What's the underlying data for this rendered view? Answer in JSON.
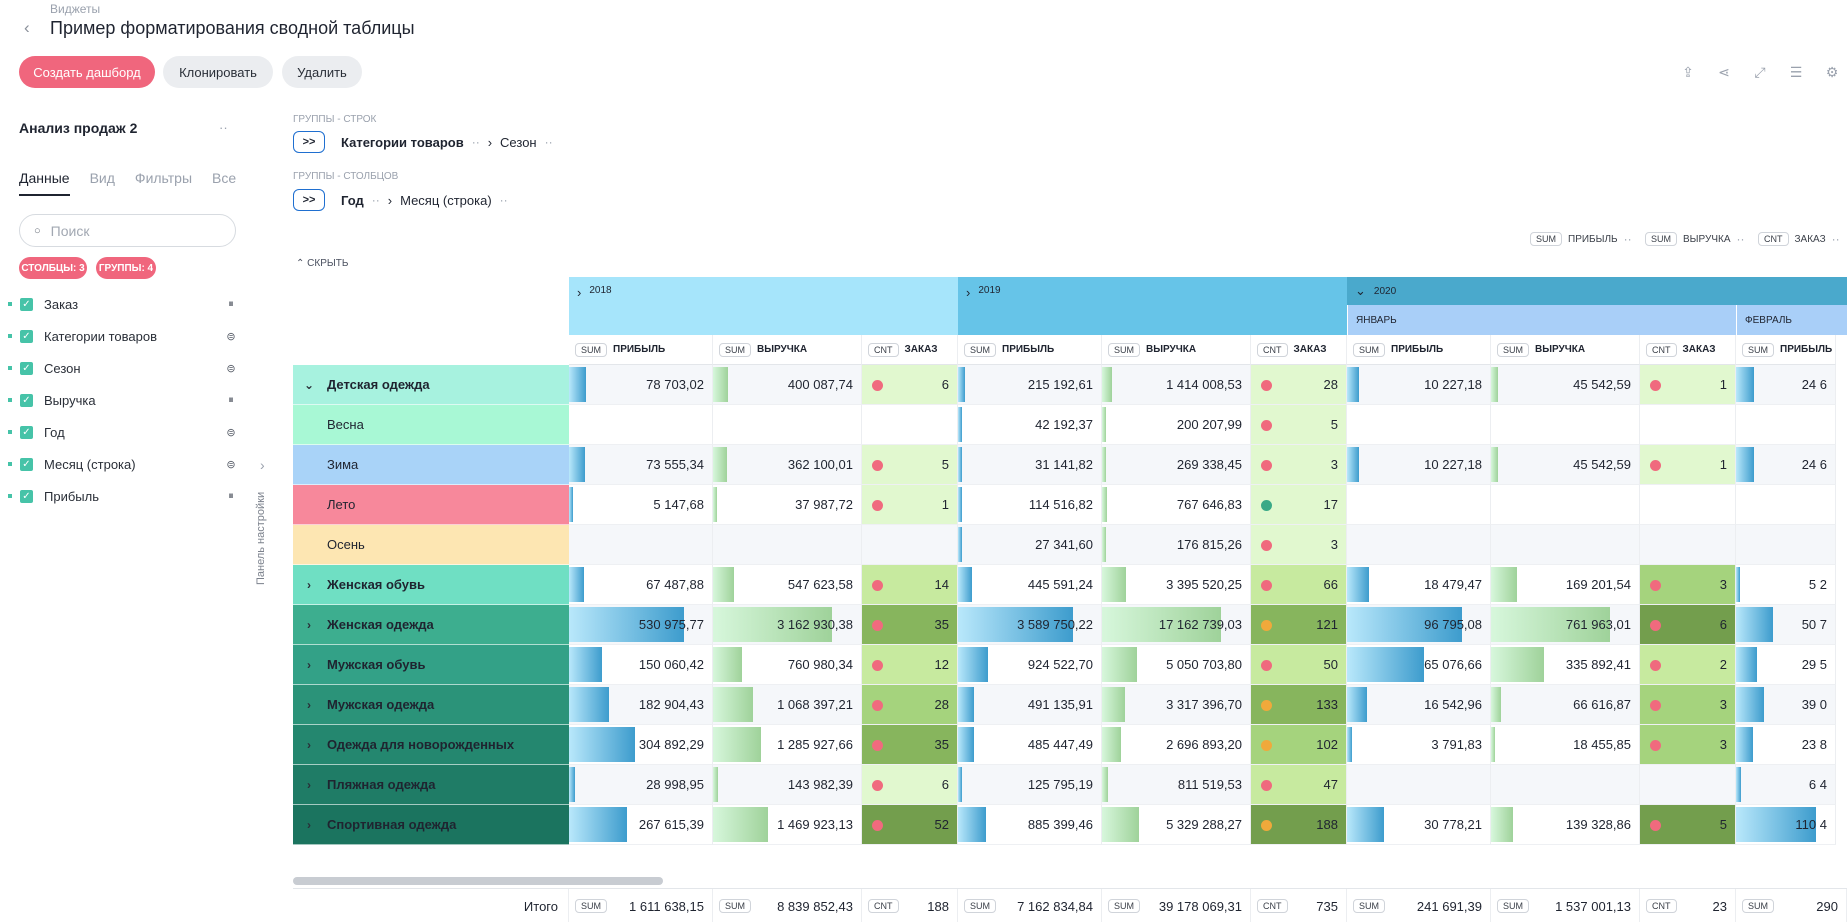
{
  "header": {
    "breadcrumb": "Виджеты",
    "title": "Пример форматирования сводной таблицы",
    "buttons": {
      "create": "Создать дашборд",
      "clone": "Клонировать",
      "delete": "Удалить"
    }
  },
  "sidebar": {
    "title": "Анализ продаж 2",
    "more": "··",
    "tabs": [
      "Данные",
      "Вид",
      "Фильтры",
      "Все"
    ],
    "search_placeholder": "Поиск",
    "pills": [
      "СТОЛБЦЫ: 3",
      "ГРУППЫ: 4"
    ],
    "fields": [
      "Заказ",
      "Категории товаров",
      "Сезон",
      "Выручка",
      "Год",
      "Месяц (строка)",
      "Прибыль"
    ],
    "panel_label": "Панель настройки"
  },
  "groups": {
    "rows_caption": "ГРУППЫ - СТРОК",
    "rows": [
      "Категории товаров",
      "Сезон"
    ],
    "cols_caption": "ГРУППЫ - СТОЛБЦОВ",
    "cols": [
      "Год",
      "Месяц (строка)"
    ],
    "expand_label": ">>",
    "hide_label": "СКРЫТЬ",
    "more": "··"
  },
  "measures": [
    {
      "agg": "SUM",
      "name": "ПРИБЫЛЬ"
    },
    {
      "agg": "SUM",
      "name": "ВЫРУЧКА"
    },
    {
      "agg": "CNT",
      "name": "ЗАКАЗ"
    }
  ],
  "table": {
    "years": [
      {
        "label": "2018",
        "color": "#a6e5fb"
      },
      {
        "label": "2019",
        "color": "#66c4e8"
      },
      {
        "label": "2020",
        "color": "#4aa9cc"
      }
    ],
    "months": [
      "ЯНВАРЬ",
      "ФЕВРАЛЬ"
    ],
    "rows": [
      {
        "label": "Детская одежда",
        "expanded": true,
        "bg": "#a7f2df",
        "bold": true,
        "vals": [
          "78 703,02",
          "400 087,74",
          "6",
          "215 192,61",
          "1 414 008,53",
          "28",
          "10 227,18",
          "45 542,59",
          "1",
          "24 6"
        ]
      },
      {
        "label": "Весна",
        "child": true,
        "bg": "#a8f8d5",
        "vals": [
          "",
          "",
          "",
          "42 192,37",
          "200 207,99",
          "5",
          "",
          "",
          "",
          ""
        ]
      },
      {
        "label": "Зима",
        "child": true,
        "bg": "#a9d3f8",
        "vals": [
          "73 555,34",
          "362 100,01",
          "5",
          "31 141,82",
          "269 338,45",
          "3",
          "10 227,18",
          "45 542,59",
          "1",
          "24 6"
        ]
      },
      {
        "label": "Лето",
        "child": true,
        "bg": "#f7889b",
        "vals": [
          "5 147,68",
          "37 987,72",
          "1",
          "114 516,82",
          "767 646,83",
          "17",
          "",
          "",
          "",
          ""
        ]
      },
      {
        "label": "Осень",
        "child": true,
        "bg": "#fde6b2",
        "vals": [
          "",
          "",
          "",
          "27 341,60",
          "176 815,26",
          "3",
          "",
          "",
          "",
          ""
        ]
      },
      {
        "label": "Женская обувь",
        "bg": "#6fdfc3",
        "bold": true,
        "vals": [
          "67 487,88",
          "547 623,58",
          "14",
          "445 591,24",
          "3 395 520,25",
          "66",
          "18 479,47",
          "169 201,54",
          "3",
          "5 2"
        ]
      },
      {
        "label": "Женская одежда",
        "bg": "#3dae8f",
        "bold": true,
        "vals": [
          "530 975,77",
          "3 162 930,38",
          "35",
          "3 589 750,22",
          "17 162 739,03",
          "121",
          "96 795,08",
          "761 963,01",
          "6",
          "50 7"
        ]
      },
      {
        "label": "Мужская обувь",
        "bg": "#33a187",
        "bold": true,
        "vals": [
          "150 060,42",
          "760 980,34",
          "12",
          "924 522,70",
          "5 050 703,80",
          "50",
          "65 076,66",
          "335 892,41",
          "2",
          "29 5"
        ]
      },
      {
        "label": "Мужская одежда",
        "bg": "#2b9379",
        "bold": true,
        "vals": [
          "182 904,43",
          "1 068 397,21",
          "28",
          "491 135,91",
          "3 317 396,70",
          "133",
          "16 542,96",
          "66 616,87",
          "3",
          "39 0"
        ]
      },
      {
        "label": "Одежда для новорожденных",
        "bg": "#24876f",
        "bold": true,
        "vals": [
          "304 892,29",
          "1 285 927,66",
          "35",
          "485 447,49",
          "2 696 893,20",
          "102",
          "3 791,83",
          "18 455,85",
          "3",
          "23 8"
        ]
      },
      {
        "label": "Пляжная одежда",
        "bg": "#1f7c66",
        "bold": true,
        "vals": [
          "28 998,95",
          "143 982,39",
          "6",
          "125 795,19",
          "811 519,53",
          "47",
          "",
          "",
          "",
          "6 4"
        ]
      },
      {
        "label": "Спортивная одежда",
        "bg": "#1b745f",
        "bold": true,
        "vals": [
          "267 615,39",
          "1 469 923,13",
          "52",
          "885 399,46",
          "5 329 288,27",
          "188",
          "30 778,21",
          "139 328,86",
          "5",
          "110 4"
        ]
      }
    ],
    "totals": {
      "label": "Итого",
      "vals": [
        {
          "agg": "SUM",
          "v": "1 611 638,15"
        },
        {
          "agg": "SUM",
          "v": "8 839 852,43"
        },
        {
          "agg": "CNT",
          "v": "188"
        },
        {
          "agg": "SUM",
          "v": "7 162 834,84"
        },
        {
          "agg": "SUM",
          "v": "39 178 069,31"
        },
        {
          "agg": "CNT",
          "v": "735"
        },
        {
          "agg": "SUM",
          "v": "241 691,39"
        },
        {
          "agg": "SUM",
          "v": "1 537 001,13"
        },
        {
          "agg": "CNT",
          "v": "23"
        },
        {
          "agg": "SUM",
          "v": "290"
        }
      ]
    }
  },
  "colors": {
    "accent": "#f0667d",
    "check": "#46c3a8"
  }
}
